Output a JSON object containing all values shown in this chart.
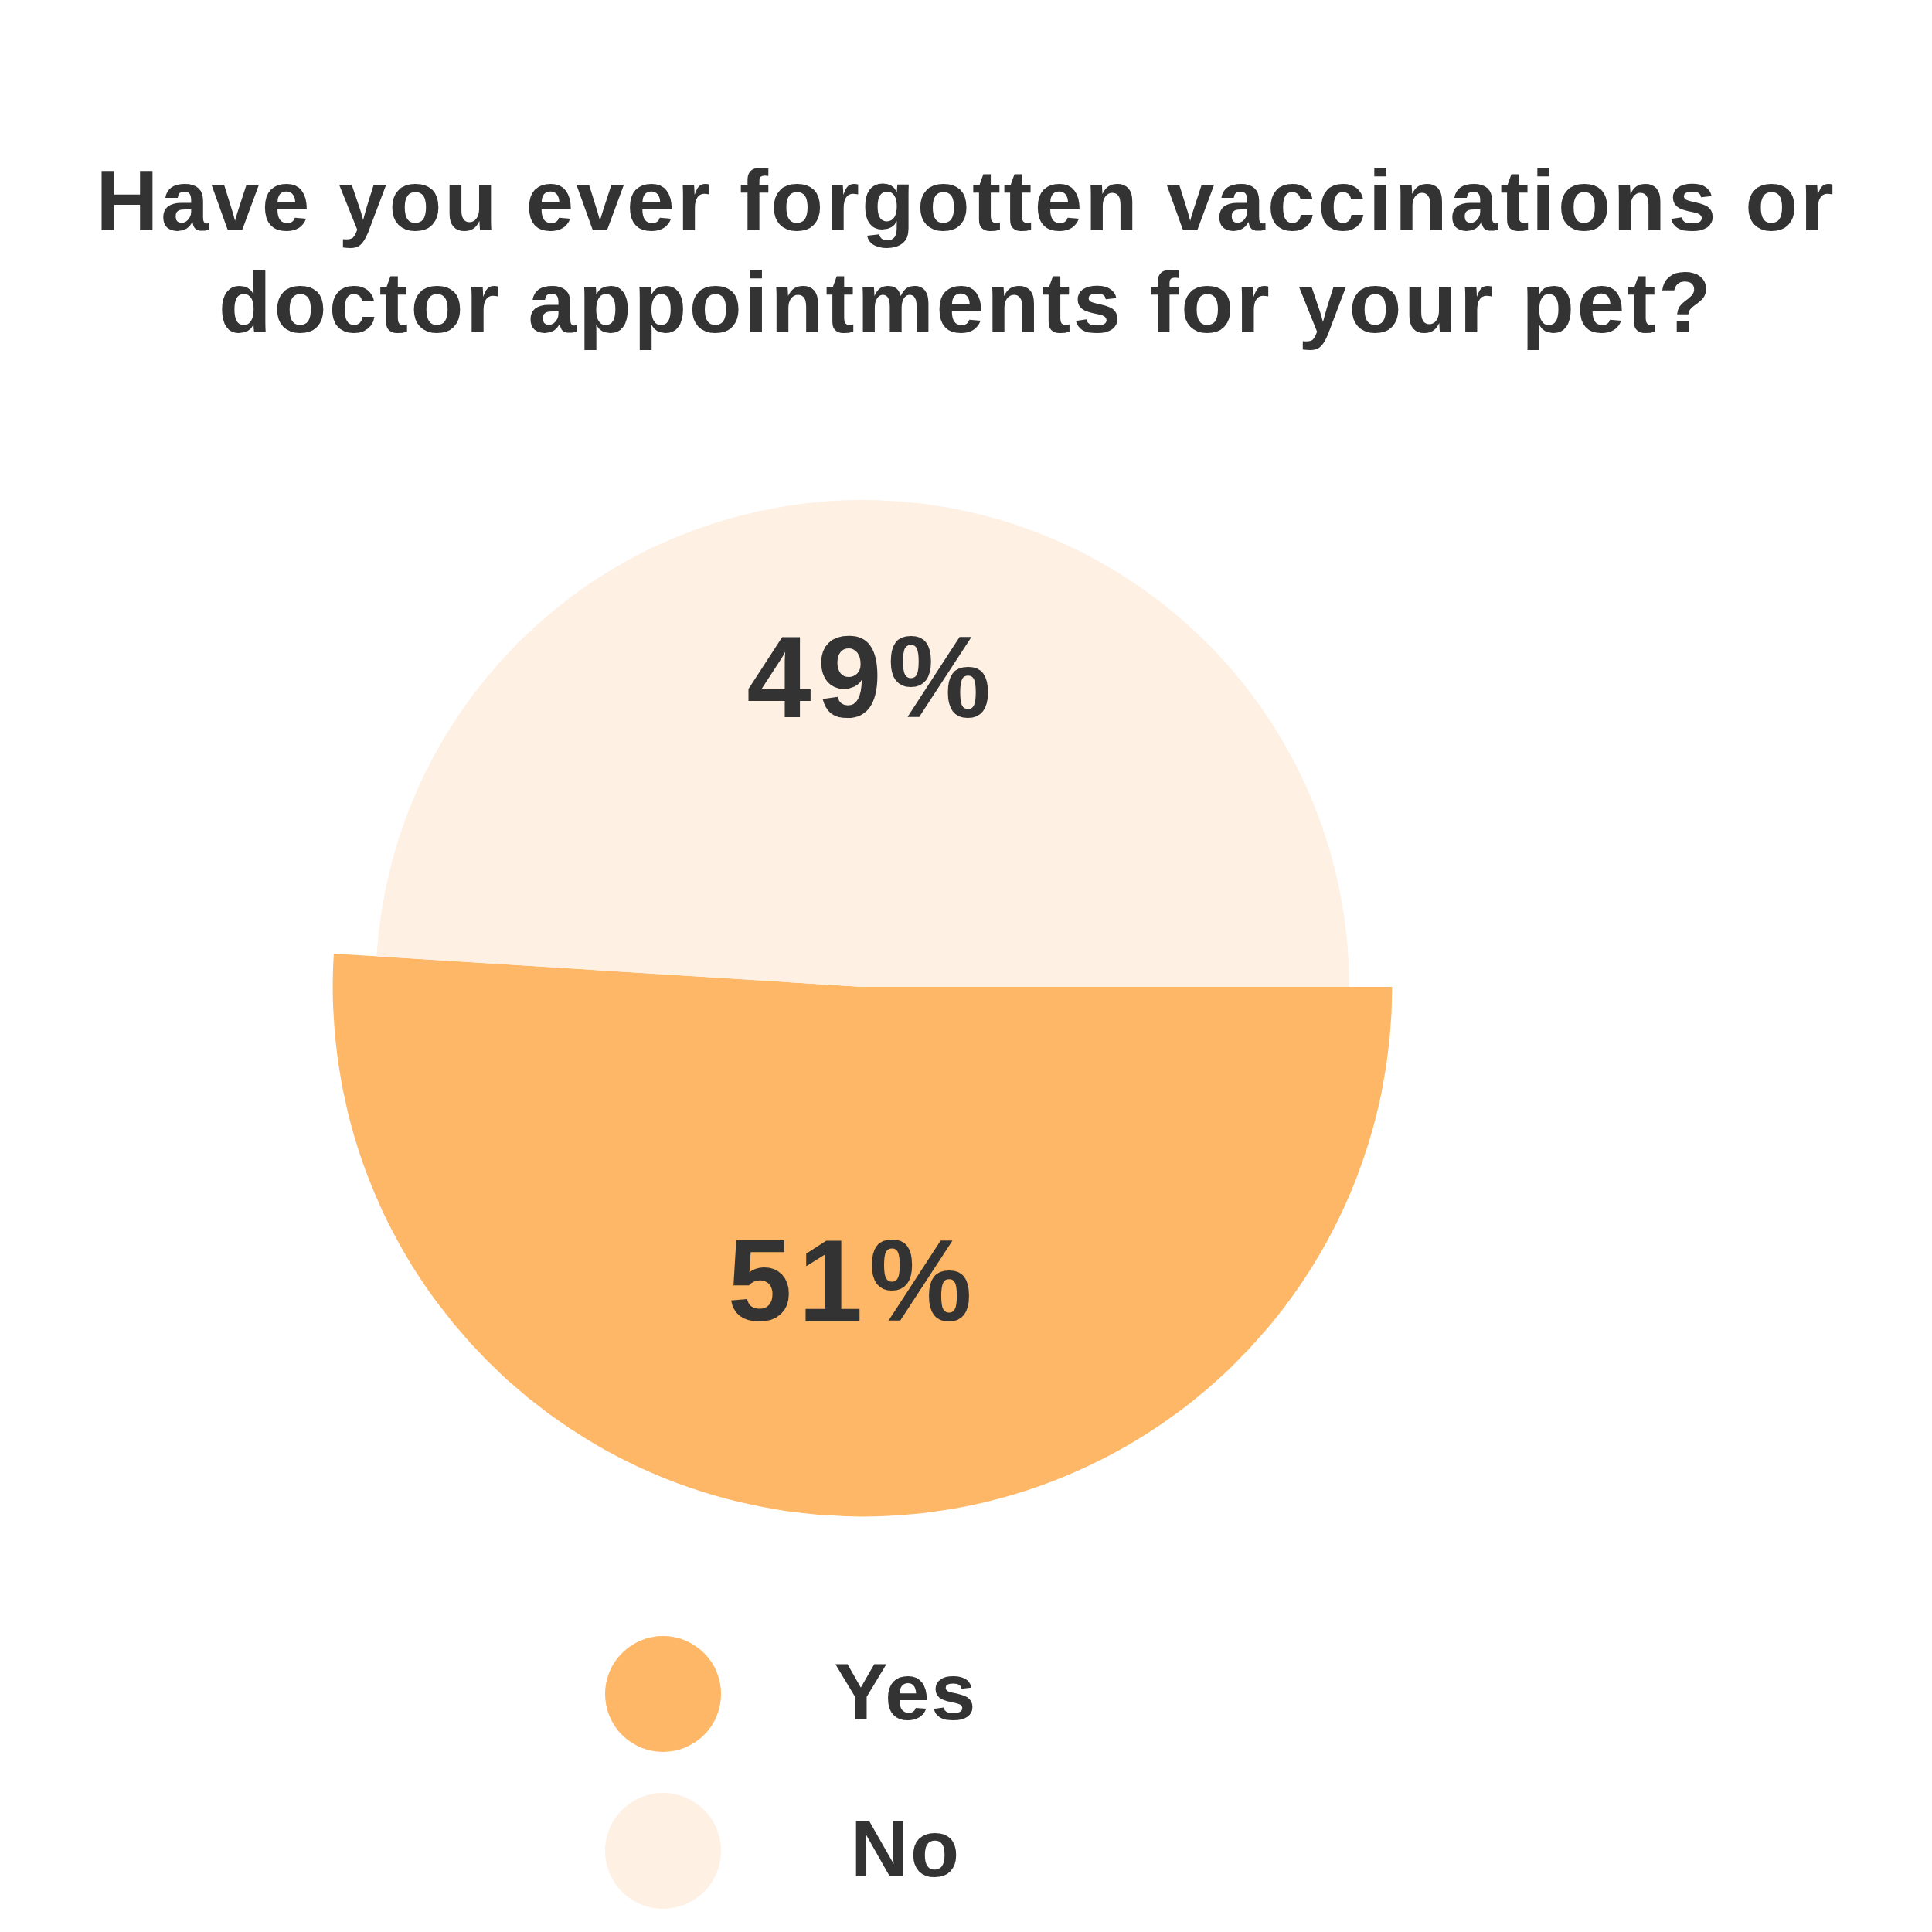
{
  "chart_data": {
    "type": "pie",
    "title": "Have you ever forgotten vaccinations or doctor appointments for your pet?",
    "categories": [
      "Yes",
      "No"
    ],
    "values": [
      51,
      49
    ],
    "colors": [
      "#feb766",
      "#fef0e3"
    ],
    "value_labels": [
      "51%",
      "49%"
    ],
    "legend": "bottom"
  }
}
